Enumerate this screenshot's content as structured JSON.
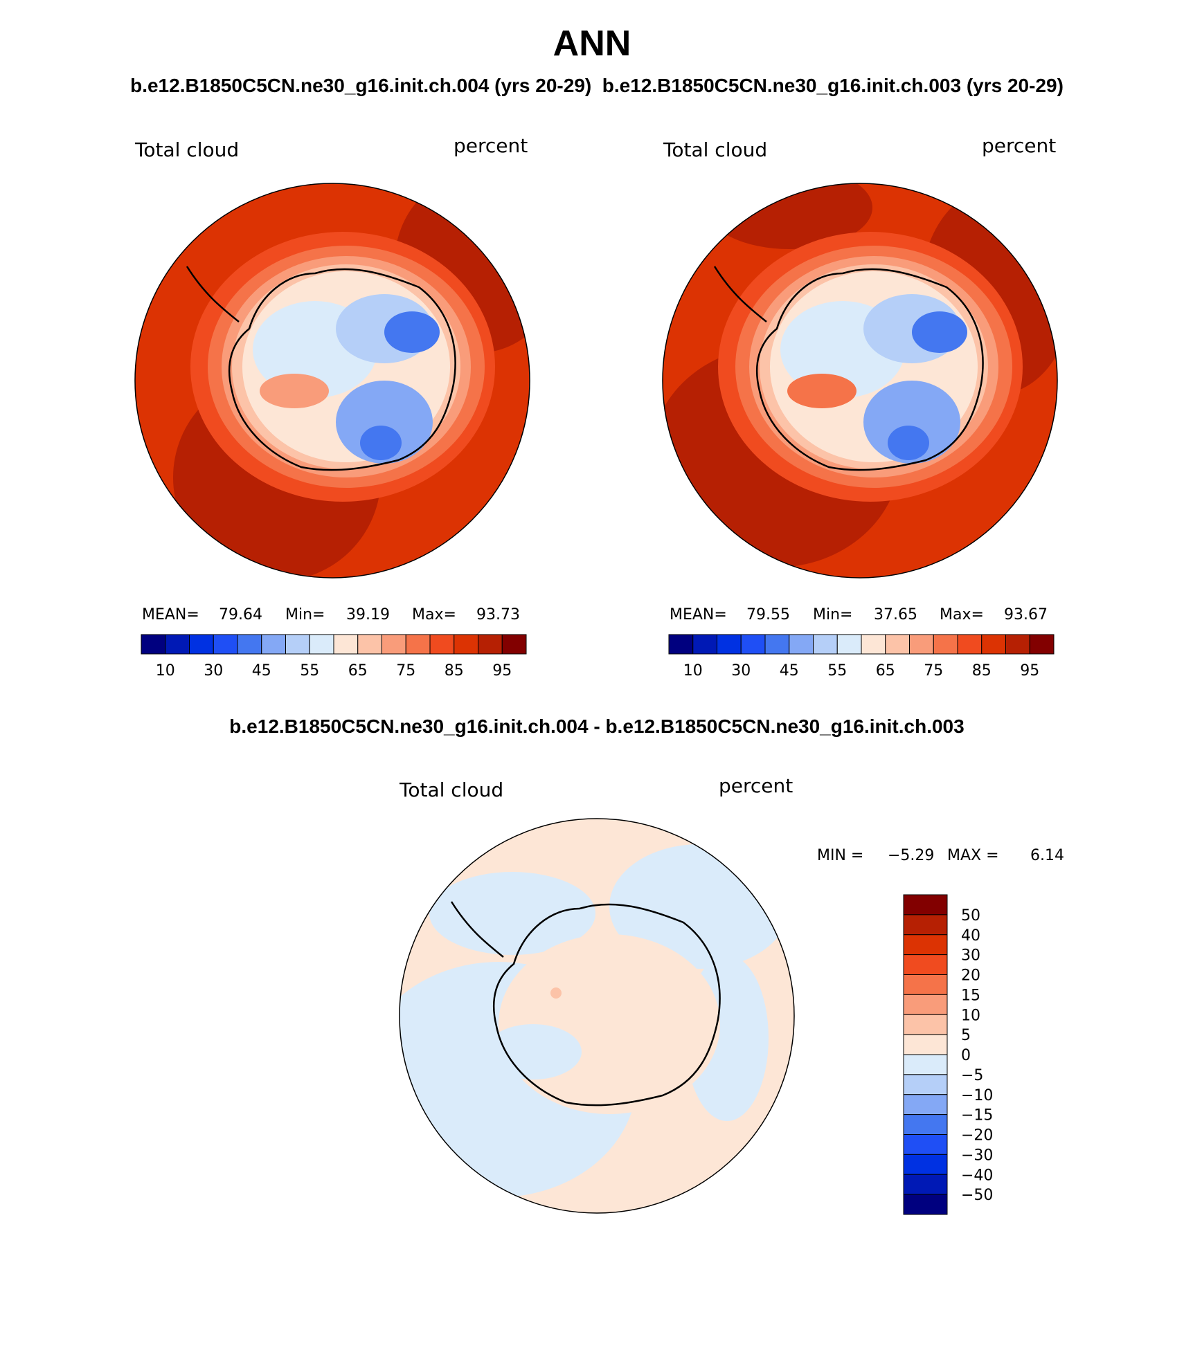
{
  "title": "ANN",
  "subtitle": "b.e12.B1850C5CN.ne30_g16.init.ch.004 (yrs 20-29)  b.e12.B1850C5CN.ne30_g16.init.ch.003 (yrs 20-29)",
  "diff_title": "b.e12.B1850C5CN.ne30_g16.init.ch.004 - b.e12.B1850C5CN.ne30_g16.init.ch.003",
  "chart_data": [
    {
      "type": "heatmap",
      "projection": "south polar stereographic",
      "variable": "Total cloud",
      "units": "percent",
      "stats": {
        "mean_label": "MEAN=",
        "mean": "79.64",
        "min_label": "Min=",
        "min": "39.19",
        "max_label": "Max=",
        "max": "93.73"
      },
      "contour_levels": [
        10,
        20,
        30,
        40,
        45,
        50,
        55,
        60,
        65,
        70,
        75,
        80,
        85,
        90,
        95
      ],
      "colorbar_tick_labels": [
        "10",
        "30",
        "45",
        "55",
        "65",
        "75",
        "85",
        "95"
      ],
      "colors": [
        "#00007f",
        "#0019b5",
        "#0031e2",
        "#1f4ff5",
        "#4477f0",
        "#84a8f5",
        "#b5cff8",
        "#daebfa",
        "#fde6d6",
        "#fcc3a8",
        "#f99c7a",
        "#f57349",
        "#f04b1f",
        "#dc3303",
        "#b62003",
        "#820000"
      ]
    },
    {
      "type": "heatmap",
      "projection": "south polar stereographic",
      "variable": "Total cloud",
      "units": "percent",
      "stats": {
        "mean_label": "MEAN=",
        "mean": "79.55",
        "min_label": "Min=",
        "min": "37.65",
        "max_label": "Max=",
        "max": "93.67"
      },
      "contour_levels": [
        10,
        20,
        30,
        40,
        45,
        50,
        55,
        60,
        65,
        70,
        75,
        80,
        85,
        90,
        95
      ],
      "colorbar_tick_labels": [
        "10",
        "30",
        "45",
        "55",
        "65",
        "75",
        "85",
        "95"
      ],
      "colors": [
        "#00007f",
        "#0019b5",
        "#0031e2",
        "#1f4ff5",
        "#4477f0",
        "#84a8f5",
        "#b5cff8",
        "#daebfa",
        "#fde6d6",
        "#fcc3a8",
        "#f99c7a",
        "#f57349",
        "#f04b1f",
        "#dc3303",
        "#b62003",
        "#820000"
      ]
    },
    {
      "type": "heatmap",
      "projection": "south polar stereographic",
      "variable": "Total cloud",
      "units": "percent",
      "stats": {
        "min_label": "MIN =",
        "min": "−5.29",
        "max_label": "MAX =",
        "max": "6.14"
      },
      "contour_levels": [
        -50,
        -40,
        -30,
        -20,
        -15,
        -10,
        -5,
        0,
        5,
        10,
        15,
        20,
        30,
        40,
        50
      ],
      "colorbar_tick_labels": [
        "50",
        "40",
        "30",
        "20",
        "15",
        "10",
        "5",
        "0",
        "−5",
        "−10",
        "−15",
        "−20",
        "−30",
        "−40",
        "−50"
      ],
      "colors": [
        "#820000",
        "#b62003",
        "#dc3303",
        "#f04b1f",
        "#f57349",
        "#f99c7a",
        "#fcc3a8",
        "#fde6d6",
        "#daebfa",
        "#b5cff8",
        "#84a8f5",
        "#4477f0",
        "#1f4ff5",
        "#0031e2",
        "#0019b5",
        "#00007f"
      ]
    }
  ]
}
